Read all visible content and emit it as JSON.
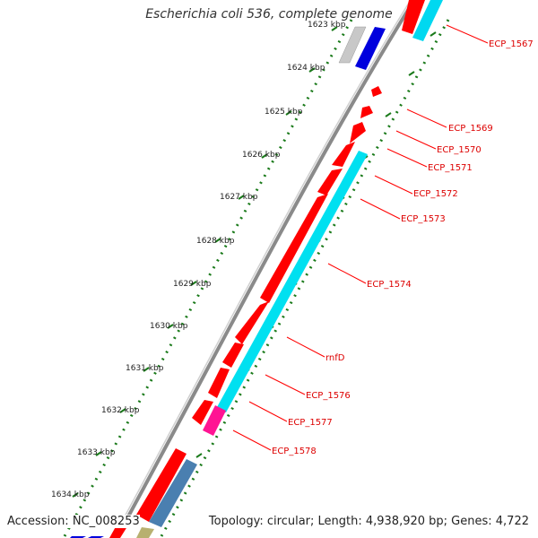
{
  "title": "Escherichia coli 536, complete genome",
  "accession": "Accession: NC_008253",
  "summary": "Topology: circular; Length: 4,938,920 bp; Genes: 4,722",
  "colors": {
    "backbone": "#888888",
    "ruler_dots": "#1a7a1a",
    "tick_green": "#1a7a1a",
    "gene_red": "#ff0000",
    "gene_cyan": "#00e0f0",
    "gene_blue": "#0000dd",
    "gene_steel": "#4a7fb0",
    "gene_magenta": "#ff1493",
    "gene_grey": "#c8c8c8",
    "gene_olive": "#b8b070",
    "label_red": "#dd0000"
  },
  "ruler_labels": [
    "1623 kbp",
    "1624 kbp",
    "1625 kbp",
    "1626 kbp",
    "1627 kbp",
    "1628 kbp",
    "1629 kbp",
    "1630 kbp",
    "1631 kbp",
    "1632 kbp",
    "1633 kbp",
    "1634 kbp"
  ],
  "gene_labels": [
    "ECP_1567",
    "ECP_1569",
    "ECP_1570",
    "ECP_1571",
    "ECP_1572",
    "ECP_1573",
    "ECP_1574",
    "rnfD",
    "ECP_1576",
    "ECP_1577",
    "ECP_1578"
  ]
}
